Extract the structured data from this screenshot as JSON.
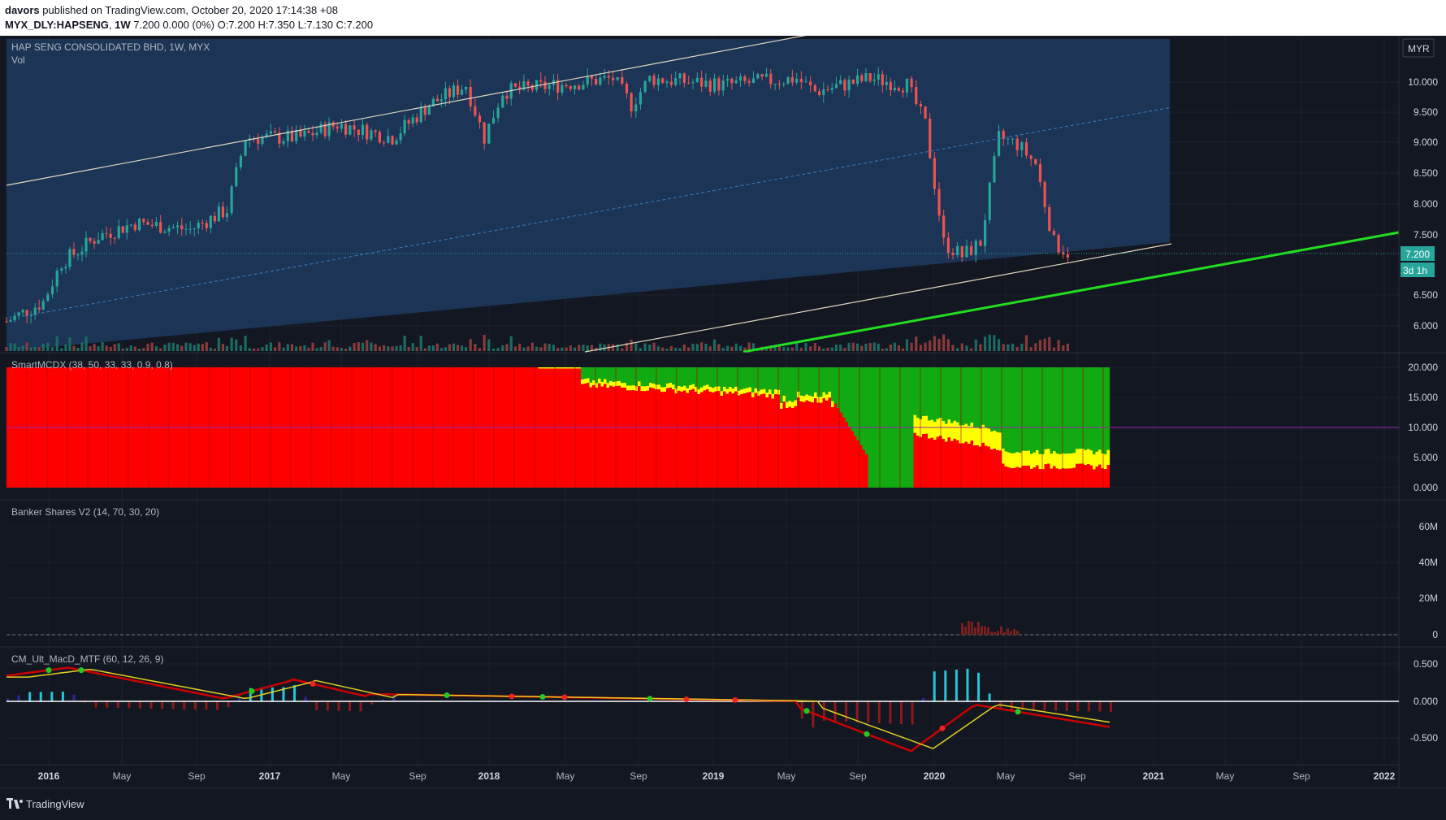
{
  "header": {
    "publisher": "davors",
    "published_text": "published on TradingView.com, October 20, 2020 17:14:38 +08",
    "symbol": "MYX_DLY:HAPSENG",
    "interval": "1W",
    "ohlc_text": "7.200  0.000 (0%)  O:7.200  H:7.350  L:7.130  C:7.200"
  },
  "main": {
    "title": "HAP SENG CONSOLIDATED BHD, 1W, MYX",
    "vol_label": "Vol",
    "currency": "MYR",
    "price_badge": "7.200",
    "countdown_badge": "3d 1h",
    "y_ticks": [
      "10.000",
      "9.500",
      "9.000",
      "8.500",
      "8.000",
      "7.500",
      "6.500",
      "6.000"
    ]
  },
  "indicators": {
    "smart_title": "SmartMCDX (38, 50, 33, 33, 0.9, 0.8)",
    "smart_ticks": [
      "20.000",
      "15.000",
      "10.000",
      "5.000",
      "0.000"
    ],
    "banker_title": "Banker Shares V2 (14, 70, 30, 20)",
    "banker_ticks": [
      "60M",
      "40M",
      "20M",
      "0"
    ],
    "macd_title": "CM_Ult_MacD_MTF (60, 12, 26, 9)",
    "macd_ticks": [
      "0.500",
      "0.000",
      "-0.500"
    ]
  },
  "x_axis": [
    "2016",
    "May",
    "Sep",
    "2017",
    "May",
    "Sep",
    "2018",
    "May",
    "Sep",
    "2019",
    "May",
    "Sep",
    "2020",
    "May",
    "Sep",
    "2021",
    "May",
    "Sep",
    "2022"
  ],
  "footer": {
    "brand": "TradingView"
  },
  "colors": {
    "background": "#131722",
    "up": "#26a69a",
    "down": "#ef5350",
    "trendline": "#22dd22",
    "channel": "#1e3a5f",
    "smart_red": "#ff0000",
    "smart_green": "#11aa11",
    "smart_yellow": "#ffff00"
  },
  "chart_data": {
    "type": "candlestick",
    "title": "HAP SENG CONSOLIDATED BHD, 1W, MYX",
    "x_range": [
      "2015-12",
      "2022-02"
    ],
    "y_range": [
      5.8,
      10.5
    ],
    "price_path": [
      {
        "date": "2015-12",
        "close": 6.2
      },
      {
        "date": "2016-02",
        "close": 6.5
      },
      {
        "date": "2016-03",
        "close": 7.1
      },
      {
        "date": "2016-05",
        "close": 7.5
      },
      {
        "date": "2016-07",
        "close": 7.7
      },
      {
        "date": "2016-10",
        "close": 7.6
      },
      {
        "date": "2016-12",
        "close": 7.9
      },
      {
        "date": "2017-01",
        "close": 9.0
      },
      {
        "date": "2017-04",
        "close": 9.0
      },
      {
        "date": "2017-06",
        "close": 9.2
      },
      {
        "date": "2017-09",
        "close": 9.0
      },
      {
        "date": "2017-11",
        "close": 9.5
      },
      {
        "date": "2018-01",
        "close": 9.8
      },
      {
        "date": "2018-02",
        "close": 9.0
      },
      {
        "date": "2018-03",
        "close": 9.7
      },
      {
        "date": "2018-06",
        "close": 9.8
      },
      {
        "date": "2018-09",
        "close": 9.9
      },
      {
        "date": "2018-10",
        "close": 9.5
      },
      {
        "date": "2018-11",
        "close": 9.9
      },
      {
        "date": "2019-03",
        "close": 9.8
      },
      {
        "date": "2019-07",
        "close": 9.9
      },
      {
        "date": "2019-08",
        "close": 9.7
      },
      {
        "date": "2019-11",
        "close": 9.9
      },
      {
        "date": "2020-01",
        "close": 9.8
      },
      {
        "date": "2020-02",
        "close": 9.2
      },
      {
        "date": "2020-03",
        "close": 7.4
      },
      {
        "date": "2020-04",
        "close": 7.2
      },
      {
        "date": "2020-05",
        "close": 7.4
      },
      {
        "date": "2020-06",
        "close": 9.0
      },
      {
        "date": "2020-07",
        "close": 8.9
      },
      {
        "date": "2020-08",
        "close": 8.6
      },
      {
        "date": "2020-09",
        "close": 7.4
      },
      {
        "date": "2020-10",
        "close": 7.2
      }
    ],
    "current_price": 7.2,
    "channel": {
      "upper_start": [
        "2015-12",
        8.3
      ],
      "upper_end": [
        "2018-02",
        10.5
      ],
      "lower_end": [
        "2020-10",
        7.35
      ]
    },
    "trendline_end": [
      "2022-02",
      7.55
    ]
  }
}
